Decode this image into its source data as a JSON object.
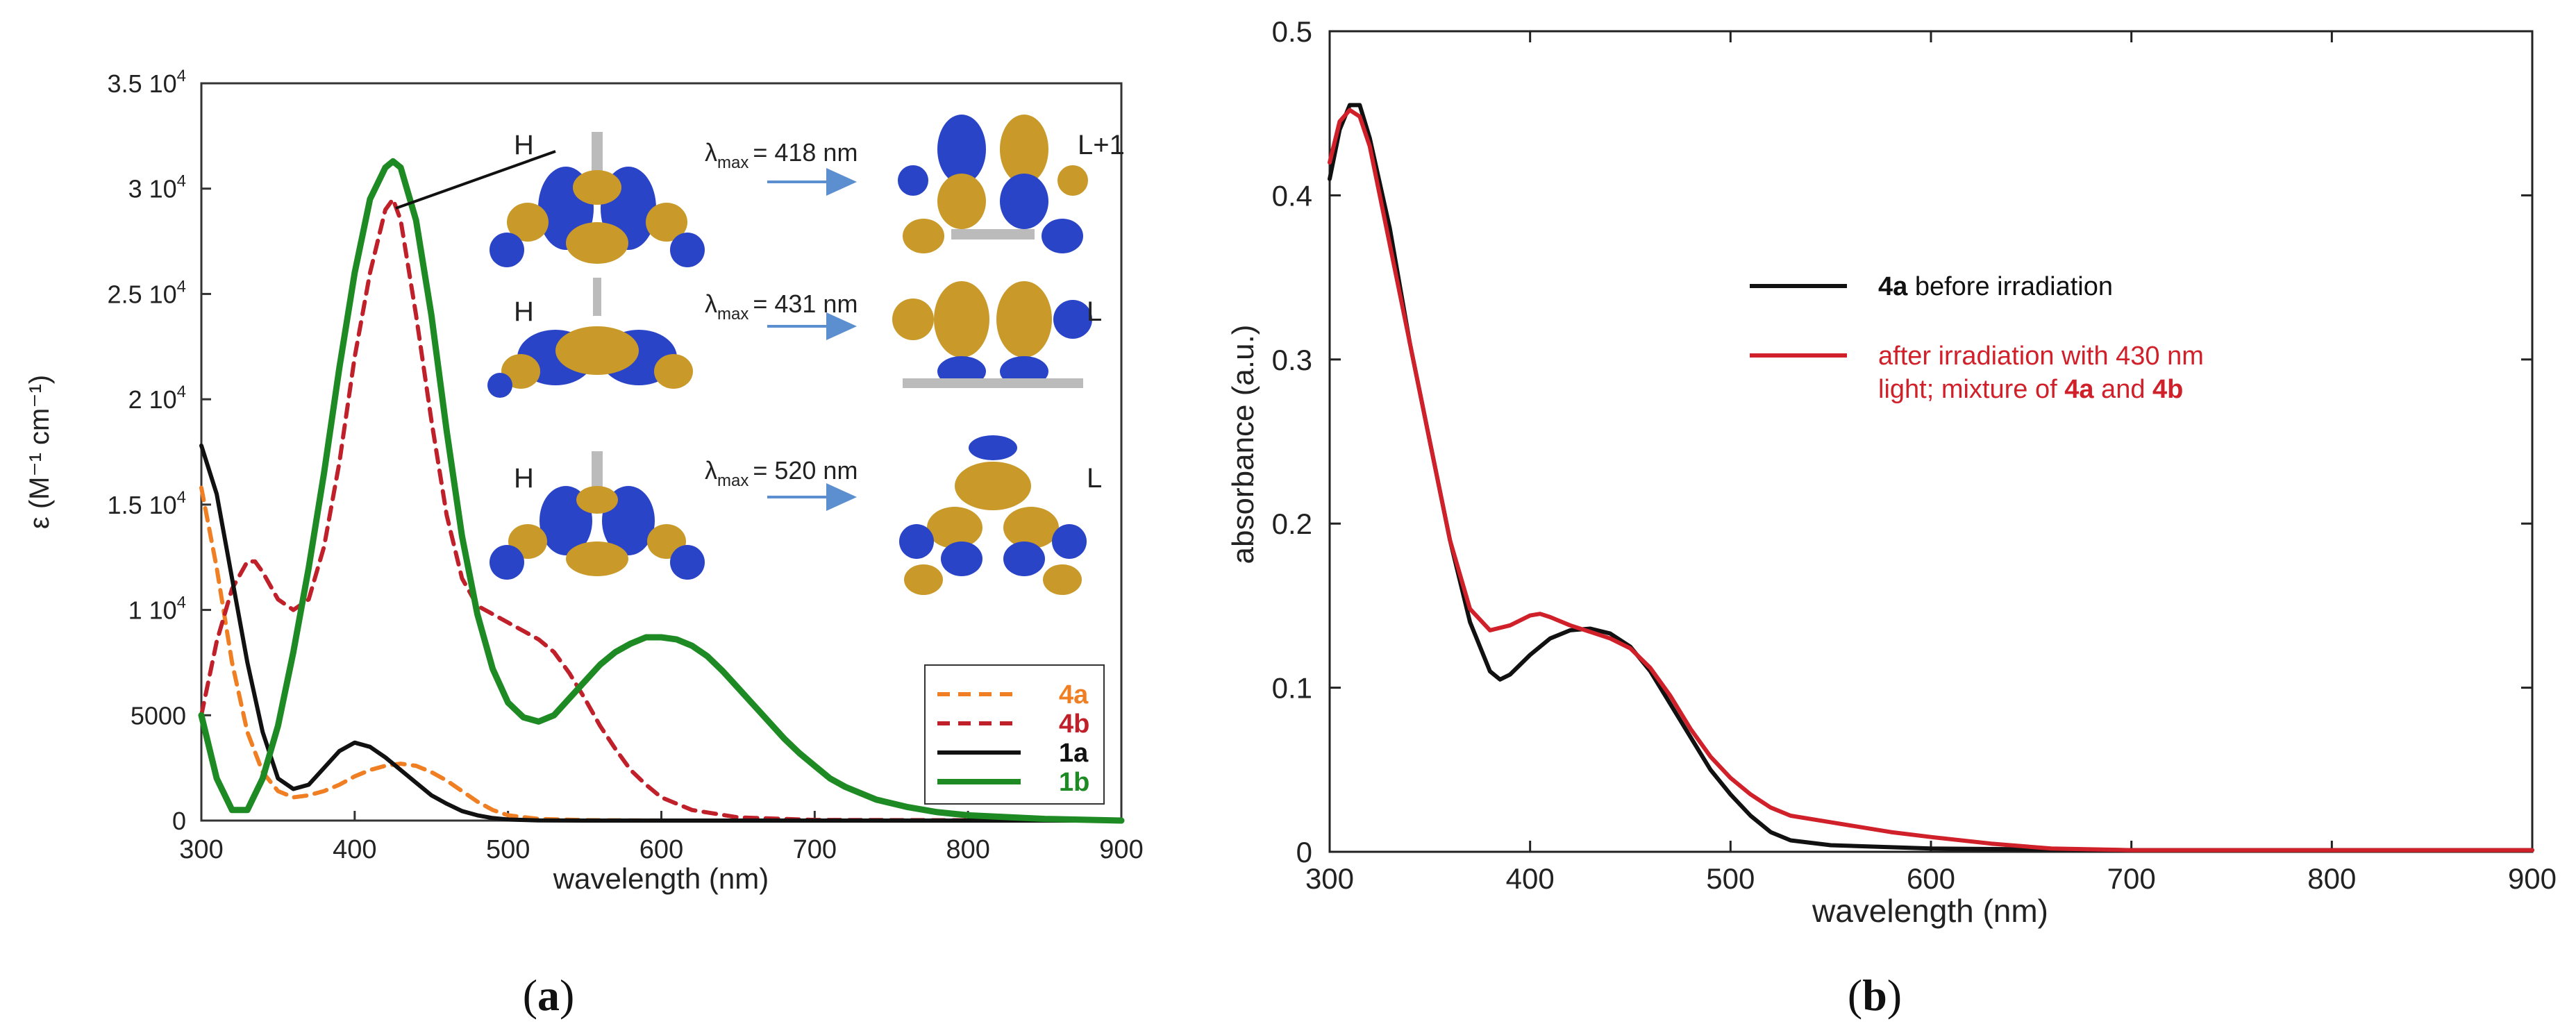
{
  "colors": {
    "c4a": "#f07f24",
    "c4b": "#c0202a",
    "c1a": "#111111",
    "c1b": "#1e8a23",
    "b_black": "#111111",
    "b_red": "#d0202a",
    "arrow": "#5b8fd0",
    "orbital_blue": "#2a44c8",
    "orbital_gold": "#c99a2a"
  },
  "chart_data": [
    {
      "panel": "a",
      "type": "line",
      "xlabel": "wavelength (nm)",
      "ylabel": "ε (M⁻¹ cm⁻¹)",
      "xlim": [
        300,
        900
      ],
      "ylim": [
        0,
        35000
      ],
      "xticks": [
        300,
        400,
        500,
        600,
        700,
        800,
        900
      ],
      "yticks": [
        {
          "value": 0,
          "mant": "0",
          "exp": ""
        },
        {
          "value": 5000,
          "mant": "5000",
          "exp": ""
        },
        {
          "value": 10000,
          "mant": "1 10",
          "exp": "4"
        },
        {
          "value": 15000,
          "mant": "1.5 10",
          "exp": "4"
        },
        {
          "value": 20000,
          "mant": "2 10",
          "exp": "4"
        },
        {
          "value": 25000,
          "mant": "2.5 10",
          "exp": "4"
        },
        {
          "value": 30000,
          "mant": "3 10",
          "exp": "4"
        },
        {
          "value": 35000,
          "mant": "3.5 10",
          "exp": "4"
        }
      ],
      "legend": [
        "4a",
        "4b",
        "1a",
        "1b"
      ],
      "legend_position": "bottom-right",
      "series": [
        {
          "name": "4a",
          "color_key": "c4a",
          "dash": true,
          "points": [
            [
              300,
              15800
            ],
            [
              310,
              12000
            ],
            [
              320,
              7500
            ],
            [
              330,
              4200
            ],
            [
              340,
              2300
            ],
            [
              350,
              1400
            ],
            [
              360,
              1100
            ],
            [
              370,
              1200
            ],
            [
              380,
              1400
            ],
            [
              390,
              1700
            ],
            [
              400,
              2100
            ],
            [
              410,
              2400
            ],
            [
              420,
              2600
            ],
            [
              430,
              2700
            ],
            [
              440,
              2600
            ],
            [
              450,
              2300
            ],
            [
              460,
              1900
            ],
            [
              470,
              1400
            ],
            [
              480,
              900
            ],
            [
              490,
              500
            ],
            [
              500,
              250
            ],
            [
              520,
              80
            ],
            [
              550,
              20
            ],
            [
              600,
              0
            ],
            [
              900,
              0
            ]
          ]
        },
        {
          "name": "4b",
          "color_key": "c4b",
          "dash": true,
          "points": [
            [
              300,
              5000
            ],
            [
              310,
              8500
            ],
            [
              320,
              11000
            ],
            [
              330,
              12300
            ],
            [
              335,
              12300
            ],
            [
              340,
              11800
            ],
            [
              350,
              10500
            ],
            [
              360,
              10000
            ],
            [
              370,
              10500
            ],
            [
              380,
              13000
            ],
            [
              390,
              17000
            ],
            [
              400,
              22000
            ],
            [
              410,
              26000
            ],
            [
              420,
              29000
            ],
            [
              425,
              29500
            ],
            [
              430,
              28500
            ],
            [
              440,
              24000
            ],
            [
              450,
              19000
            ],
            [
              460,
              14500
            ],
            [
              470,
              11500
            ],
            [
              480,
              10200
            ],
            [
              490,
              9800
            ],
            [
              500,
              9400
            ],
            [
              510,
              9000
            ],
            [
              520,
              8600
            ],
            [
              530,
              8000
            ],
            [
              540,
              7000
            ],
            [
              550,
              5800
            ],
            [
              560,
              4500
            ],
            [
              570,
              3400
            ],
            [
              580,
              2400
            ],
            [
              590,
              1700
            ],
            [
              600,
              1100
            ],
            [
              620,
              500
            ],
            [
              650,
              150
            ],
            [
              700,
              30
            ],
            [
              900,
              0
            ]
          ]
        },
        {
          "name": "1a",
          "color_key": "c1a",
          "dash": false,
          "points": [
            [
              300,
              17800
            ],
            [
              310,
              15500
            ],
            [
              320,
              11500
            ],
            [
              330,
              7500
            ],
            [
              340,
              4200
            ],
            [
              350,
              2000
            ],
            [
              360,
              1500
            ],
            [
              370,
              1700
            ],
            [
              380,
              2500
            ],
            [
              390,
              3300
            ],
            [
              400,
              3700
            ],
            [
              410,
              3500
            ],
            [
              420,
              3000
            ],
            [
              430,
              2400
            ],
            [
              440,
              1800
            ],
            [
              450,
              1200
            ],
            [
              460,
              800
            ],
            [
              470,
              450
            ],
            [
              480,
              250
            ],
            [
              490,
              120
            ],
            [
              500,
              50
            ],
            [
              520,
              10
            ],
            [
              550,
              0
            ],
            [
              900,
              0
            ]
          ]
        },
        {
          "name": "1b",
          "color_key": "c1b",
          "dash": false,
          "points": [
            [
              300,
              5000
            ],
            [
              310,
              2000
            ],
            [
              320,
              500
            ],
            [
              330,
              500
            ],
            [
              340,
              2000
            ],
            [
              350,
              4500
            ],
            [
              360,
              8000
            ],
            [
              370,
              12000
            ],
            [
              380,
              16500
            ],
            [
              390,
              21500
            ],
            [
              400,
              26000
            ],
            [
              410,
              29500
            ],
            [
              420,
              31000
            ],
            [
              425,
              31300
            ],
            [
              430,
              31000
            ],
            [
              440,
              28500
            ],
            [
              450,
              24000
            ],
            [
              460,
              18500
            ],
            [
              470,
              13500
            ],
            [
              480,
              9800
            ],
            [
              490,
              7200
            ],
            [
              500,
              5600
            ],
            [
              510,
              4900
            ],
            [
              520,
              4700
            ],
            [
              530,
              5000
            ],
            [
              540,
              5800
            ],
            [
              550,
              6600
            ],
            [
              560,
              7400
            ],
            [
              570,
              8000
            ],
            [
              580,
              8400
            ],
            [
              590,
              8700
            ],
            [
              600,
              8700
            ],
            [
              610,
              8600
            ],
            [
              620,
              8300
            ],
            [
              630,
              7800
            ],
            [
              640,
              7100
            ],
            [
              650,
              6300
            ],
            [
              660,
              5500
            ],
            [
              670,
              4700
            ],
            [
              680,
              3900
            ],
            [
              690,
              3200
            ],
            [
              700,
              2600
            ],
            [
              710,
              2000
            ],
            [
              720,
              1600
            ],
            [
              740,
              1000
            ],
            [
              760,
              650
            ],
            [
              780,
              400
            ],
            [
              800,
              250
            ],
            [
              850,
              80
            ],
            [
              900,
              0
            ]
          ]
        }
      ],
      "annotations": {
        "transitions": [
          {
            "from": "H",
            "to": "L+1",
            "lambda_prefix": "λ",
            "lambda_sub": "max",
            "lambda_value": "= 418 nm"
          },
          {
            "from": "H",
            "to": "L",
            "lambda_prefix": "λ",
            "lambda_sub": "max",
            "lambda_value": "= 431 nm"
          },
          {
            "from": "H",
            "to": "L",
            "lambda_prefix": "λ",
            "lambda_sub": "max",
            "lambda_value": "= 520 nm"
          }
        ]
      },
      "panel_label": "(a)",
      "panel_letter": "a"
    },
    {
      "panel": "b",
      "type": "line",
      "xlabel": "wavelength (nm)",
      "ylabel": "absorbance (a.u.)",
      "xlim": [
        300,
        900
      ],
      "ylim": [
        0,
        0.5
      ],
      "xticks": [
        300,
        400,
        500,
        600,
        700,
        800,
        900
      ],
      "yticks": [
        "0",
        "0.1",
        "0.2",
        "0.3",
        "0.4",
        "0.5"
      ],
      "legend_position": "upper-middle",
      "legend": {
        "black": {
          "bold": "4a",
          "text": " before irradiation"
        },
        "red_line1": "after irradiation with 430 nm",
        "red_line2_pre": "light; mixture of ",
        "red_line2_b1": "4a",
        "red_line2_mid": " and ",
        "red_line2_b2": "4b"
      },
      "series": [
        {
          "name": "4a before irradiation",
          "color_key": "b_black",
          "points": [
            [
              300,
              0.41
            ],
            [
              305,
              0.44
            ],
            [
              310,
              0.455
            ],
            [
              315,
              0.455
            ],
            [
              320,
              0.435
            ],
            [
              330,
              0.38
            ],
            [
              340,
              0.31
            ],
            [
              350,
              0.25
            ],
            [
              360,
              0.19
            ],
            [
              370,
              0.14
            ],
            [
              380,
              0.11
            ],
            [
              385,
              0.105
            ],
            [
              390,
              0.108
            ],
            [
              400,
              0.12
            ],
            [
              410,
              0.13
            ],
            [
              420,
              0.135
            ],
            [
              430,
              0.136
            ],
            [
              440,
              0.133
            ],
            [
              450,
              0.125
            ],
            [
              460,
              0.11
            ],
            [
              470,
              0.09
            ],
            [
              480,
              0.07
            ],
            [
              490,
              0.05
            ],
            [
              500,
              0.035
            ],
            [
              510,
              0.022
            ],
            [
              520,
              0.012
            ],
            [
              530,
              0.007
            ],
            [
              550,
              0.004
            ],
            [
              600,
              0.002
            ],
            [
              700,
              0.001
            ],
            [
              900,
              0.001
            ]
          ]
        },
        {
          "name": "after irradiation with 430 nm light; mixture of 4a and 4b",
          "color_key": "b_red",
          "points": [
            [
              300,
              0.42
            ],
            [
              305,
              0.445
            ],
            [
              310,
              0.452
            ],
            [
              315,
              0.448
            ],
            [
              320,
              0.43
            ],
            [
              330,
              0.37
            ],
            [
              340,
              0.31
            ],
            [
              350,
              0.25
            ],
            [
              360,
              0.19
            ],
            [
              370,
              0.148
            ],
            [
              380,
              0.135
            ],
            [
              390,
              0.138
            ],
            [
              400,
              0.144
            ],
            [
              405,
              0.145
            ],
            [
              410,
              0.143
            ],
            [
              420,
              0.138
            ],
            [
              430,
              0.134
            ],
            [
              440,
              0.13
            ],
            [
              450,
              0.124
            ],
            [
              460,
              0.112
            ],
            [
              470,
              0.095
            ],
            [
              480,
              0.075
            ],
            [
              490,
              0.058
            ],
            [
              500,
              0.045
            ],
            [
              510,
              0.035
            ],
            [
              520,
              0.027
            ],
            [
              530,
              0.022
            ],
            [
              550,
              0.018
            ],
            [
              580,
              0.012
            ],
            [
              600,
              0.009
            ],
            [
              630,
              0.005
            ],
            [
              660,
              0.002
            ],
            [
              700,
              0.001
            ],
            [
              900,
              0.001
            ]
          ]
        }
      ],
      "panel_label": "(b)",
      "panel_letter": "b"
    }
  ]
}
